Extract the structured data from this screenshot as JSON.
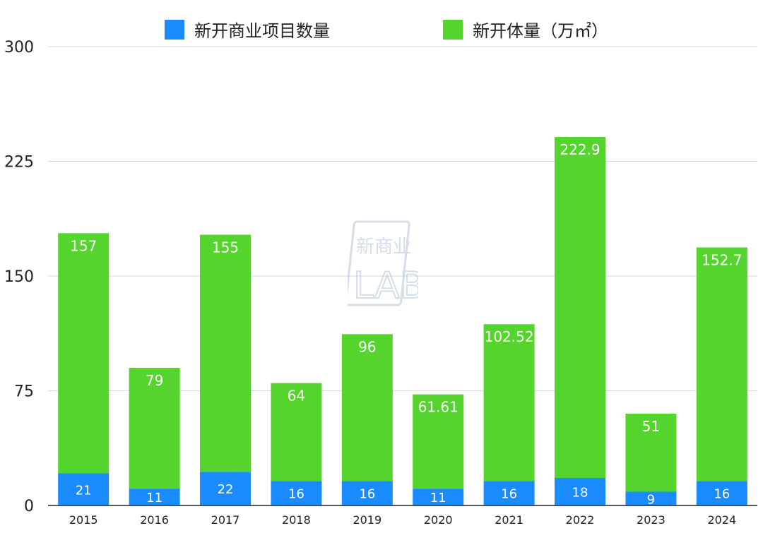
{
  "legend": {
    "series_a": "新开商业项目数量",
    "series_b": "新开体量（万㎡）"
  },
  "watermark": {
    "text_top": "新商业",
    "text_bottom": "LAB"
  },
  "colors": {
    "series_a": "#1a8cff",
    "series_b": "#55d42d",
    "grid": "#d9d9d9",
    "axis": "#222222",
    "label": "#ffffff"
  },
  "chart_data": {
    "type": "bar",
    "stacked": true,
    "categories": [
      "2015",
      "2016",
      "2017",
      "2018",
      "2019",
      "2020",
      "2021",
      "2022",
      "2023",
      "2024"
    ],
    "series": [
      {
        "name": "新开商业项目数量",
        "values": [
          21,
          11,
          22,
          16,
          16,
          11,
          16,
          18,
          9,
          16
        ],
        "labels": [
          "21",
          "11",
          "22",
          "16",
          "16",
          "11",
          "16",
          "18",
          "9",
          "16"
        ]
      },
      {
        "name": "新开体量（万㎡）",
        "values": [
          157,
          79,
          155,
          64,
          96,
          61.61,
          102.52,
          222.9,
          51,
          152.7
        ],
        "labels": [
          "157",
          "79",
          "155",
          "64",
          "96",
          "61.61",
          "102.52",
          "222.9",
          "51",
          "152.7"
        ]
      }
    ],
    "yticks": [
      "0",
      "75",
      "150",
      "225",
      "300"
    ],
    "ylim": [
      0,
      300
    ],
    "grid": true,
    "legend_position": "top"
  }
}
